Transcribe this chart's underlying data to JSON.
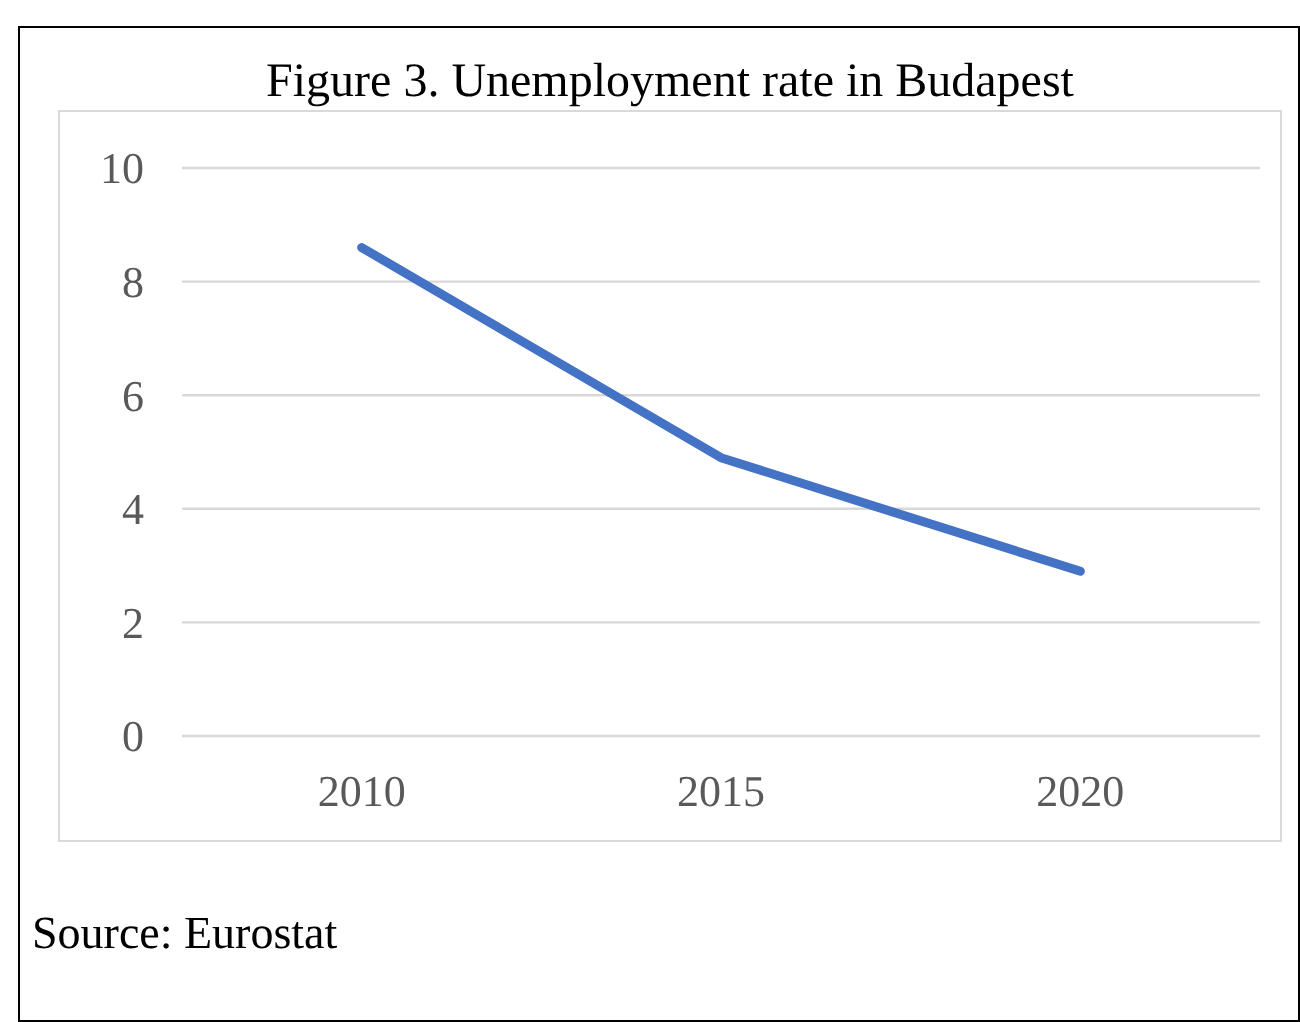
{
  "chart_data": {
    "type": "line",
    "title": "Figure 3. Unemployment rate in Budapest",
    "categories": [
      "2010",
      "2015",
      "2020"
    ],
    "series": [
      {
        "color": "#4472c4",
        "values": [
          8.6,
          4.9,
          2.9
        ]
      }
    ],
    "ylim": [
      0,
      10
    ],
    "yticks": [
      0,
      2,
      4,
      6,
      8,
      10
    ],
    "grid": "y",
    "marker": "none",
    "line_style": "solid",
    "annotations": [
      "Source: Eurostat"
    ]
  }
}
